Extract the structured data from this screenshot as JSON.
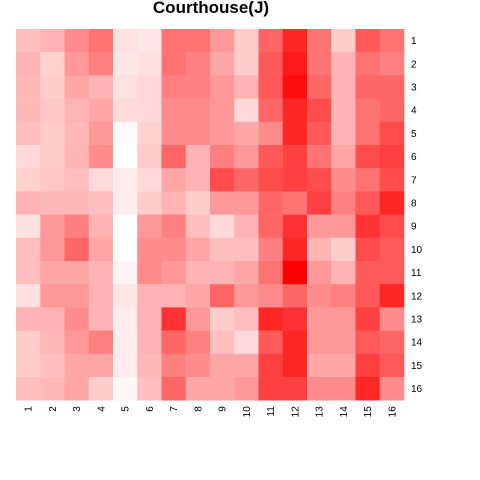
{
  "chart_data": {
    "type": "heatmap",
    "title": "Courthouse(J)",
    "x_labels": [
      "1",
      "2",
      "3",
      "4",
      "5",
      "6",
      "7",
      "8",
      "9",
      "10",
      "11",
      "12",
      "13",
      "14",
      "15",
      "16"
    ],
    "y_labels": [
      "1",
      "2",
      "3",
      "4",
      "5",
      "6",
      "7",
      "8",
      "9",
      "10",
      "11",
      "12",
      "13",
      "14",
      "15",
      "16"
    ],
    "value_range": [
      0,
      1
    ],
    "colors": {
      "low": "#ffffff",
      "high": "#ff0000"
    },
    "values": [
      [
        0.25,
        0.3,
        0.45,
        0.55,
        0.12,
        0.1,
        0.55,
        0.55,
        0.4,
        0.2,
        0.6,
        0.85,
        0.55,
        0.2,
        0.65,
        0.55
      ],
      [
        0.3,
        0.18,
        0.4,
        0.5,
        0.1,
        0.12,
        0.55,
        0.5,
        0.35,
        0.2,
        0.65,
        0.9,
        0.55,
        0.3,
        0.55,
        0.5
      ],
      [
        0.28,
        0.2,
        0.35,
        0.3,
        0.12,
        0.15,
        0.5,
        0.5,
        0.4,
        0.3,
        0.65,
        0.95,
        0.6,
        0.3,
        0.6,
        0.6
      ],
      [
        0.28,
        0.22,
        0.3,
        0.35,
        0.14,
        0.15,
        0.45,
        0.45,
        0.4,
        0.15,
        0.6,
        0.85,
        0.7,
        0.3,
        0.55,
        0.6
      ],
      [
        0.25,
        0.2,
        0.28,
        0.4,
        0.02,
        0.18,
        0.45,
        0.45,
        0.4,
        0.35,
        0.45,
        0.85,
        0.65,
        0.3,
        0.55,
        0.7
      ],
      [
        0.15,
        0.2,
        0.3,
        0.45,
        0.0,
        0.2,
        0.6,
        0.3,
        0.5,
        0.4,
        0.65,
        0.75,
        0.55,
        0.35,
        0.7,
        0.75
      ],
      [
        0.18,
        0.22,
        0.25,
        0.15,
        0.08,
        0.15,
        0.35,
        0.3,
        0.7,
        0.6,
        0.7,
        0.75,
        0.7,
        0.45,
        0.55,
        0.7
      ],
      [
        0.3,
        0.28,
        0.28,
        0.25,
        0.07,
        0.2,
        0.3,
        0.2,
        0.4,
        0.4,
        0.6,
        0.55,
        0.75,
        0.5,
        0.65,
        0.85
      ],
      [
        0.12,
        0.4,
        0.5,
        0.3,
        0.0,
        0.4,
        0.5,
        0.25,
        0.15,
        0.3,
        0.6,
        0.8,
        0.4,
        0.4,
        0.8,
        0.7
      ],
      [
        0.25,
        0.4,
        0.6,
        0.35,
        0.0,
        0.45,
        0.45,
        0.35,
        0.25,
        0.25,
        0.5,
        0.85,
        0.3,
        0.2,
        0.7,
        0.65
      ],
      [
        0.25,
        0.35,
        0.35,
        0.3,
        0.05,
        0.45,
        0.4,
        0.3,
        0.3,
        0.35,
        0.55,
        1.0,
        0.4,
        0.3,
        0.65,
        0.65
      ],
      [
        0.12,
        0.4,
        0.4,
        0.3,
        0.1,
        0.3,
        0.3,
        0.35,
        0.6,
        0.4,
        0.45,
        0.6,
        0.45,
        0.5,
        0.65,
        0.85
      ],
      [
        0.3,
        0.3,
        0.45,
        0.3,
        0.08,
        0.3,
        0.8,
        0.4,
        0.2,
        0.25,
        0.85,
        0.8,
        0.4,
        0.4,
        0.75,
        0.45
      ],
      [
        0.2,
        0.28,
        0.4,
        0.5,
        0.07,
        0.3,
        0.6,
        0.5,
        0.25,
        0.15,
        0.65,
        0.85,
        0.4,
        0.4,
        0.65,
        0.6
      ],
      [
        0.2,
        0.25,
        0.35,
        0.35,
        0.08,
        0.28,
        0.5,
        0.45,
        0.35,
        0.35,
        0.75,
        0.85,
        0.35,
        0.35,
        0.75,
        0.65
      ],
      [
        0.25,
        0.28,
        0.35,
        0.2,
        0.03,
        0.25,
        0.6,
        0.35,
        0.35,
        0.4,
        0.75,
        0.75,
        0.45,
        0.45,
        0.85,
        0.45
      ]
    ]
  }
}
